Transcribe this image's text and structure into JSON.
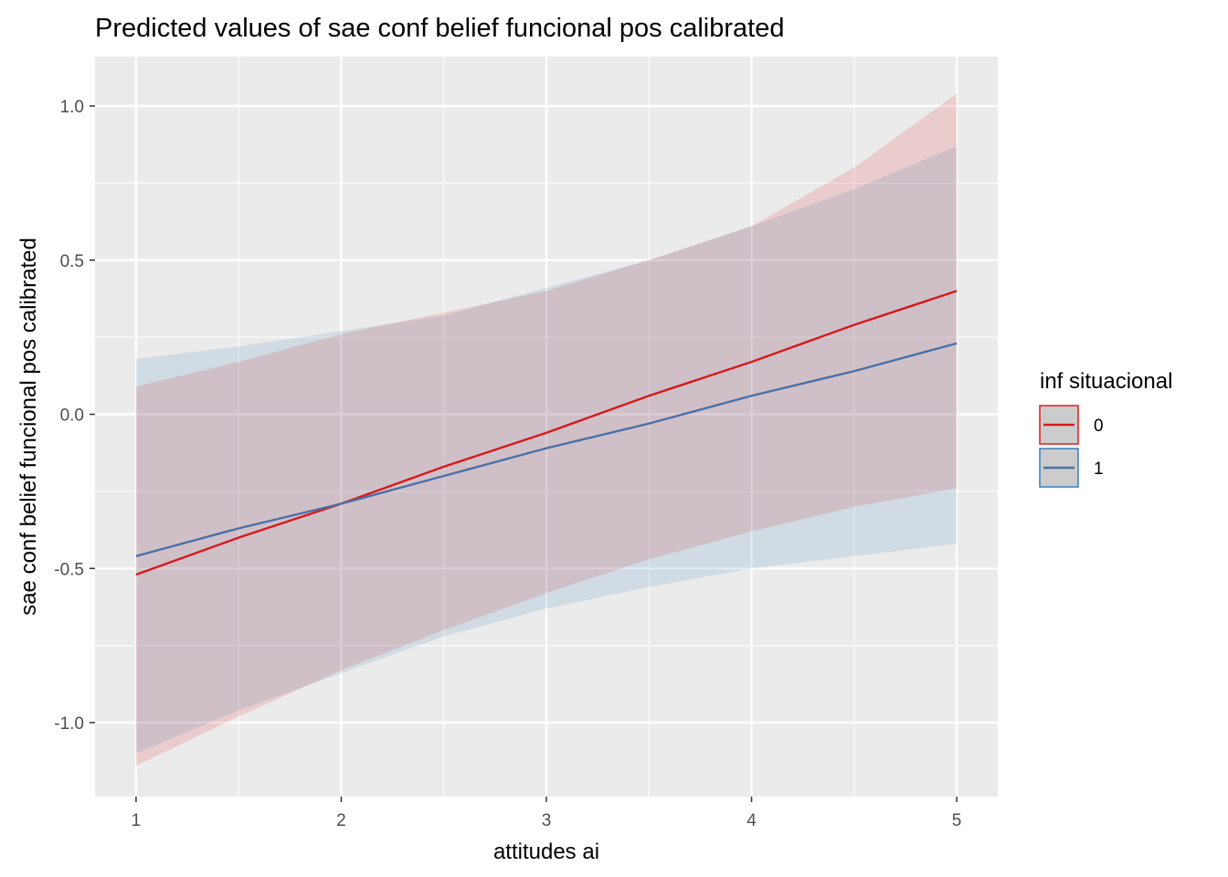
{
  "chart_data": {
    "type": "line",
    "title": "Predicted values of sae conf belief funcional pos calibrated",
    "xlabel": "attitudes ai",
    "ylabel": "sae conf belief funcional pos calibrated",
    "xlim": [
      0.8,
      5.2
    ],
    "ylim": [
      -1.24,
      1.16
    ],
    "x_ticks": [
      1,
      2,
      3,
      4,
      5
    ],
    "x_tick_labels": [
      "1",
      "2",
      "3",
      "4",
      "5"
    ],
    "x_minor_ticks": [
      1.5,
      2.5,
      3.5,
      4.5
    ],
    "y_ticks": [
      -1.0,
      -0.5,
      0.0,
      0.5,
      1.0
    ],
    "y_tick_labels": [
      "-1.0",
      "-0.5",
      "0.0",
      "0.5",
      "1.0"
    ],
    "y_minor_ticks": [
      -0.75,
      -0.25,
      0.25,
      0.75
    ],
    "grid": true,
    "legend": {
      "title": "inf situacional",
      "position": "right"
    },
    "x": [
      1,
      1.5,
      2,
      2.5,
      3,
      3.5,
      4,
      4.5,
      5
    ],
    "series": [
      {
        "name": "0",
        "color": "#d7191c",
        "fill": "#e41a1c",
        "values": [
          -0.52,
          -0.4,
          -0.29,
          -0.17,
          -0.06,
          0.06,
          0.17,
          0.29,
          0.4
        ],
        "lower": [
          -1.14,
          -0.98,
          -0.83,
          -0.7,
          -0.58,
          -0.47,
          -0.38,
          -0.3,
          -0.24
        ],
        "upper": [
          0.09,
          0.17,
          0.26,
          0.33,
          0.4,
          0.5,
          0.61,
          0.8,
          1.04
        ]
      },
      {
        "name": "1",
        "color": "#4a6fa5",
        "fill": "#377eb8",
        "values": [
          -0.46,
          -0.37,
          -0.29,
          -0.2,
          -0.11,
          -0.03,
          0.06,
          0.14,
          0.23
        ],
        "lower": [
          -1.1,
          -0.96,
          -0.84,
          -0.72,
          -0.63,
          -0.56,
          -0.5,
          -0.46,
          -0.42
        ],
        "upper": [
          0.18,
          0.22,
          0.27,
          0.32,
          0.41,
          0.5,
          0.61,
          0.73,
          0.87
        ]
      }
    ]
  }
}
